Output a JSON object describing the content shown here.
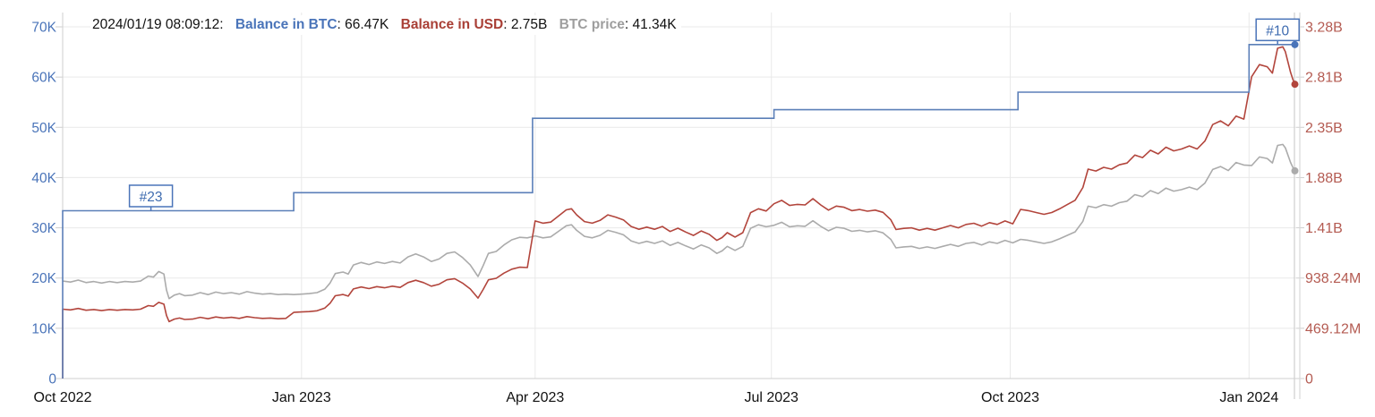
{
  "header": {
    "timestamp": "2024/01/19 08:09:12:",
    "sep": ": ",
    "items": [
      {
        "label": "Balance in BTC",
        "value": "66.47K",
        "color": "#4a74b9"
      },
      {
        "label": "Balance in USD",
        "value": "2.75B",
        "color": "#a93f36"
      },
      {
        "label": "BTC price",
        "value": "41.34K",
        "color": "#9e9e9e"
      }
    ]
  },
  "colors": {
    "balance_btc_line": "#5b7fb8",
    "balance_usd_line": "#b2453c",
    "btc_price_line": "#ababab",
    "left_axis_labels": "#4a74b9",
    "right_axis_labels": "#b45b52",
    "x_axis_labels": "#111111",
    "gridline": "#e9e9e9",
    "axis_line": "#cfcfcf",
    "cursor_line": "#d9d9d9",
    "annotation_border": "#4a74b9",
    "annotation_text": "#3f6cb0",
    "background": "#ffffff"
  },
  "chart_data": {
    "type": "line",
    "title": "",
    "x_start_date": "2022-10-01",
    "x_end_day": 475,
    "x_axis": {
      "tick_labels": [
        "Oct 2022",
        "Jan 2023",
        "Apr 2023",
        "Jul 2023",
        "Oct 2023",
        "Jan 2024"
      ],
      "tick_days": [
        0,
        92,
        182,
        273,
        365,
        457
      ]
    },
    "left_axis": {
      "unit": "K",
      "min": 0,
      "max": 70,
      "tick_values": [
        0,
        10,
        20,
        30,
        40,
        50,
        60,
        70
      ],
      "tick_labels": [
        "0",
        "10K",
        "20K",
        "30K",
        "40K",
        "50K",
        "60K",
        "70K"
      ]
    },
    "right_axis": {
      "unit": "B",
      "min": 0,
      "max": 3.28384,
      "tick_values": [
        0,
        0.46912,
        0.93824,
        1.40736,
        1.87648,
        2.3456,
        2.81472,
        3.28384
      ],
      "tick_labels": [
        "0",
        "469.12M",
        "938.24M",
        "1.41B",
        "1.88B",
        "2.35B",
        "2.81B",
        "3.28B"
      ]
    },
    "series": [
      {
        "name": "Balance in BTC",
        "axis": "left",
        "unit": "K BTC",
        "shape": "step",
        "starts_from_zero": true,
        "steps_day_value": [
          [
            0,
            33.4
          ],
          [
            89,
            37.0
          ],
          [
            181,
            51.8
          ],
          [
            274,
            53.5
          ],
          [
            368,
            57.0
          ],
          [
            457,
            66.47
          ]
        ],
        "end_day": 475,
        "end_value": 66.47
      },
      {
        "name": "BTC price",
        "axis": "left",
        "unit": "K USD",
        "shape": "line",
        "points_day_value": [
          [
            0,
            19.4
          ],
          [
            3,
            19.2
          ],
          [
            6,
            19.6
          ],
          [
            9,
            19.1
          ],
          [
            12,
            19.3
          ],
          [
            15,
            19.0
          ],
          [
            18,
            19.3
          ],
          [
            21,
            19.1
          ],
          [
            24,
            19.3
          ],
          [
            27,
            19.2
          ],
          [
            30,
            19.4
          ],
          [
            33,
            20.4
          ],
          [
            35,
            20.2
          ],
          [
            37,
            21.3
          ],
          [
            39,
            20.8
          ],
          [
            40,
            17.6
          ],
          [
            41,
            15.9
          ],
          [
            43,
            16.6
          ],
          [
            45,
            16.9
          ],
          [
            47,
            16.5
          ],
          [
            50,
            16.6
          ],
          [
            53,
            17.1
          ],
          [
            56,
            16.7
          ],
          [
            59,
            17.2
          ],
          [
            62,
            16.9
          ],
          [
            65,
            17.1
          ],
          [
            68,
            16.8
          ],
          [
            71,
            17.3
          ],
          [
            74,
            17.0
          ],
          [
            77,
            16.8
          ],
          [
            80,
            16.9
          ],
          [
            83,
            16.7
          ],
          [
            86,
            16.8
          ],
          [
            89,
            16.7
          ],
          [
            92,
            16.8
          ],
          [
            95,
            16.9
          ],
          [
            98,
            17.1
          ],
          [
            101,
            17.8
          ],
          [
            103,
            19.0
          ],
          [
            105,
            20.9
          ],
          [
            108,
            21.2
          ],
          [
            110,
            20.8
          ],
          [
            112,
            22.6
          ],
          [
            115,
            23.1
          ],
          [
            118,
            22.7
          ],
          [
            121,
            23.2
          ],
          [
            124,
            22.9
          ],
          [
            127,
            23.3
          ],
          [
            130,
            23.0
          ],
          [
            133,
            24.2
          ],
          [
            136,
            24.8
          ],
          [
            139,
            24.2
          ],
          [
            142,
            23.3
          ],
          [
            145,
            23.8
          ],
          [
            148,
            24.9
          ],
          [
            151,
            25.2
          ],
          [
            154,
            24.1
          ],
          [
            157,
            22.6
          ],
          [
            160,
            20.3
          ],
          [
            162,
            22.5
          ],
          [
            164,
            24.9
          ],
          [
            167,
            25.3
          ],
          [
            170,
            26.6
          ],
          [
            173,
            27.6
          ],
          [
            176,
            28.1
          ],
          [
            179,
            28.0
          ],
          [
            182,
            28.4
          ],
          [
            185,
            28.0
          ],
          [
            188,
            28.2
          ],
          [
            191,
            29.3
          ],
          [
            194,
            30.4
          ],
          [
            196,
            30.6
          ],
          [
            198,
            29.5
          ],
          [
            201,
            28.3
          ],
          [
            204,
            28.0
          ],
          [
            207,
            28.5
          ],
          [
            210,
            29.5
          ],
          [
            213,
            29.1
          ],
          [
            216,
            28.6
          ],
          [
            219,
            27.4
          ],
          [
            222,
            26.9
          ],
          [
            225,
            27.3
          ],
          [
            228,
            26.9
          ],
          [
            231,
            27.4
          ],
          [
            234,
            26.5
          ],
          [
            237,
            27.1
          ],
          [
            240,
            26.4
          ],
          [
            243,
            25.8
          ],
          [
            246,
            26.6
          ],
          [
            249,
            26.0
          ],
          [
            252,
            24.9
          ],
          [
            254,
            25.4
          ],
          [
            256,
            26.3
          ],
          [
            259,
            25.5
          ],
          [
            262,
            26.3
          ],
          [
            265,
            29.9
          ],
          [
            268,
            30.6
          ],
          [
            271,
            30.2
          ],
          [
            274,
            30.5
          ],
          [
            277,
            31.1
          ],
          [
            280,
            30.2
          ],
          [
            283,
            30.4
          ],
          [
            286,
            30.3
          ],
          [
            289,
            31.4
          ],
          [
            292,
            30.3
          ],
          [
            295,
            29.4
          ],
          [
            298,
            30.1
          ],
          [
            301,
            29.9
          ],
          [
            304,
            29.3
          ],
          [
            307,
            29.5
          ],
          [
            310,
            29.2
          ],
          [
            313,
            29.4
          ],
          [
            316,
            29.0
          ],
          [
            319,
            27.7
          ],
          [
            321,
            26.0
          ],
          [
            324,
            26.2
          ],
          [
            327,
            26.3
          ],
          [
            330,
            25.9
          ],
          [
            333,
            26.2
          ],
          [
            336,
            25.9
          ],
          [
            339,
            26.3
          ],
          [
            342,
            26.7
          ],
          [
            345,
            26.3
          ],
          [
            348,
            26.9
          ],
          [
            351,
            27.1
          ],
          [
            354,
            26.6
          ],
          [
            357,
            27.2
          ],
          [
            360,
            26.9
          ],
          [
            363,
            27.5
          ],
          [
            366,
            27.0
          ],
          [
            369,
            27.7
          ],
          [
            372,
            27.5
          ],
          [
            375,
            27.2
          ],
          [
            378,
            26.9
          ],
          [
            381,
            27.2
          ],
          [
            384,
            27.8
          ],
          [
            387,
            28.5
          ],
          [
            390,
            29.2
          ],
          [
            393,
            31.3
          ],
          [
            395,
            34.3
          ],
          [
            398,
            34.0
          ],
          [
            401,
            34.6
          ],
          [
            404,
            34.3
          ],
          [
            407,
            35.0
          ],
          [
            410,
            35.3
          ],
          [
            413,
            36.6
          ],
          [
            416,
            36.2
          ],
          [
            419,
            37.4
          ],
          [
            422,
            36.8
          ],
          [
            425,
            37.9
          ],
          [
            428,
            37.3
          ],
          [
            431,
            37.6
          ],
          [
            434,
            38.1
          ],
          [
            437,
            37.6
          ],
          [
            440,
            38.9
          ],
          [
            443,
            41.6
          ],
          [
            446,
            42.2
          ],
          [
            449,
            41.4
          ],
          [
            452,
            43.0
          ],
          [
            455,
            42.5
          ],
          [
            458,
            42.4
          ],
          [
            461,
            44.1
          ],
          [
            464,
            43.8
          ],
          [
            466,
            42.9
          ],
          [
            468,
            46.4
          ],
          [
            470,
            46.6
          ],
          [
            471,
            45.9
          ],
          [
            473,
            43.0
          ],
          [
            474,
            41.9
          ],
          [
            475,
            41.34
          ]
        ],
        "end_value": 41.34
      },
      {
        "name": "Balance in USD",
        "axis": "right",
        "unit": "B USD",
        "shape": "line",
        "derived_from": "Balance in BTC × BTC price",
        "starts_from_zero": true,
        "monthly_checkpoints_B": [
          [
            "2022-10-01",
            0.65
          ],
          [
            "2022-11-01",
            0.65
          ],
          [
            "2022-12-01",
            0.56
          ],
          [
            "2023-01-01",
            0.62
          ],
          [
            "2023-02-01",
            0.85
          ],
          [
            "2023-03-01",
            0.93
          ],
          [
            "2023-04-01",
            1.47
          ],
          [
            "2023-05-01",
            1.51
          ],
          [
            "2023-06-01",
            1.34
          ],
          [
            "2023-07-01",
            1.63
          ],
          [
            "2023-08-01",
            1.57
          ],
          [
            "2023-09-01",
            1.39
          ],
          [
            "2023-10-01",
            1.45
          ],
          [
            "2023-11-01",
            1.96
          ],
          [
            "2023-12-01",
            2.16
          ],
          [
            "2024-01-01",
            2.82
          ],
          [
            "2024-01-19",
            2.75
          ]
        ],
        "end_value": 2.75
      }
    ],
    "annotations": [
      {
        "label": "#23",
        "day": 34,
        "series": "Balance in BTC"
      },
      {
        "label": "#10",
        "day": 468,
        "series": "Balance in BTC"
      }
    ],
    "legend_position": "none",
    "grid": true
  }
}
